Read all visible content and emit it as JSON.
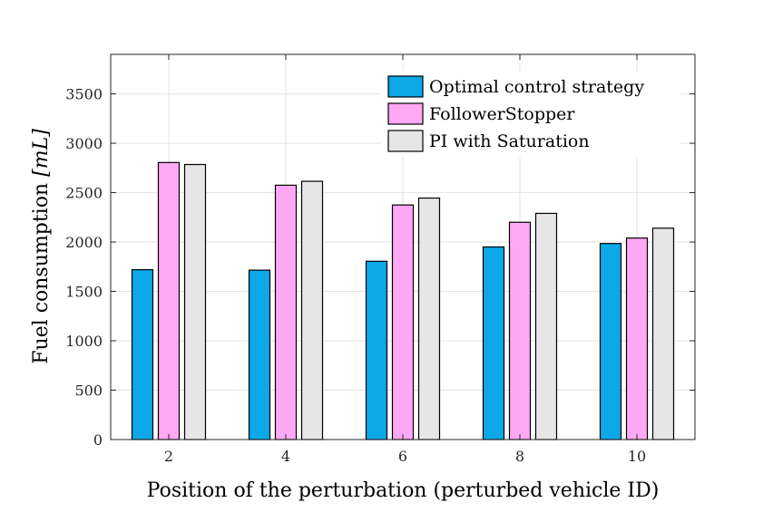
{
  "chart_data": {
    "type": "bar",
    "title": "",
    "xlabel": "Position of the perturbation (perturbed vehicle ID)",
    "ylabel": "Fuel consumption",
    "ylabel_unit": "[mL]",
    "categories": [
      "2",
      "4",
      "6",
      "8",
      "10"
    ],
    "ylim": [
      0,
      3900
    ],
    "yticks": [
      "0",
      "500",
      "1000",
      "1500",
      "2000",
      "2500",
      "3000",
      "3500"
    ],
    "grid": true,
    "legend_position": "top-right",
    "series": [
      {
        "name": "Optimal control strategy",
        "color": "#0ca8e8",
        "values": [
          1720,
          1715,
          1805,
          1950,
          1985
        ]
      },
      {
        "name": "FollowerStopper",
        "color": "#ffa8f4",
        "values": [
          2805,
          2575,
          2375,
          2200,
          2040
        ]
      },
      {
        "name": "PI with Saturation",
        "color": "#e6e6e6",
        "values": [
          2785,
          2615,
          2445,
          2290,
          2140
        ]
      }
    ]
  }
}
